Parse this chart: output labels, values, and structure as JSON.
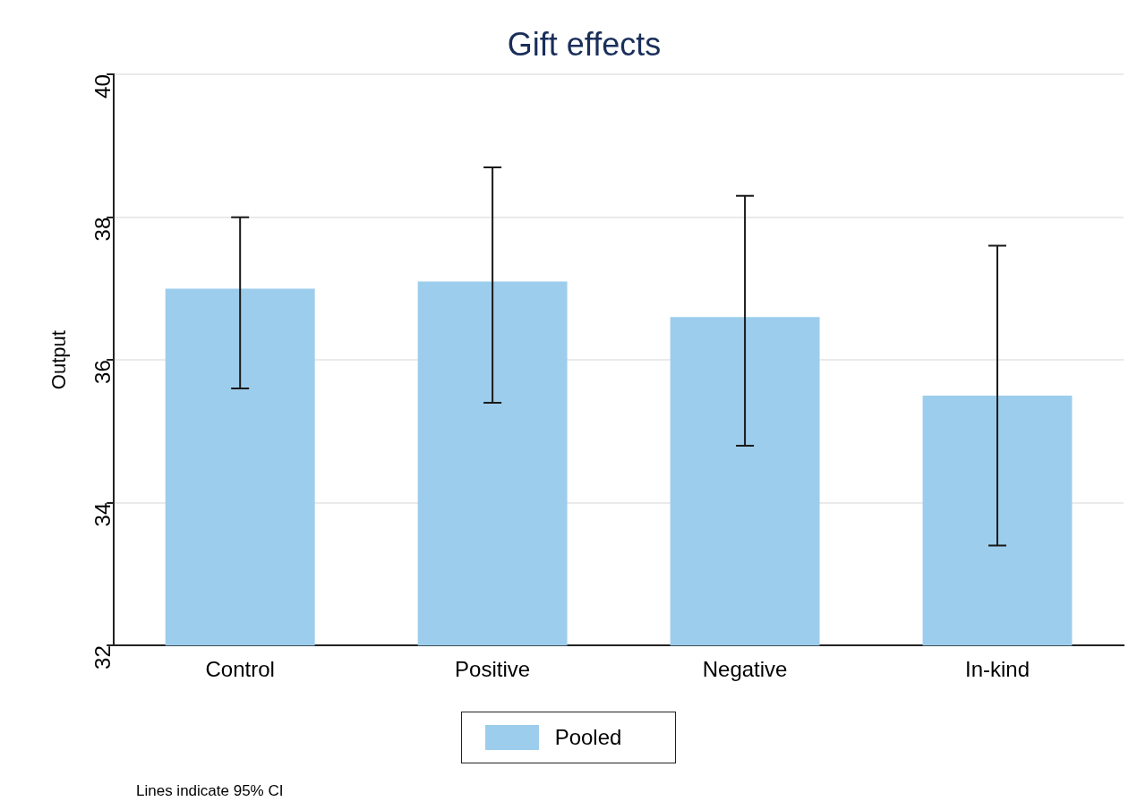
{
  "chart_data": {
    "type": "bar",
    "title": "Gift effects",
    "ylabel": "Output",
    "categories": [
      "Control",
      "Positive",
      "Negative",
      "In-kind"
    ],
    "series": [
      {
        "name": "Pooled",
        "color": "#9dcdec",
        "values": [
          37.0,
          37.1,
          36.6,
          35.5
        ],
        "errors": [
          [
            35.6,
            38.0
          ],
          [
            35.4,
            38.7
          ],
          [
            34.8,
            38.3
          ],
          [
            33.4,
            37.6
          ]
        ]
      }
    ],
    "ylim": [
      32,
      40
    ],
    "yticks": [
      32,
      34,
      36,
      38,
      40
    ],
    "grid": "y",
    "legend": "bottom",
    "annotations": [
      "Lines indicate 95% CI"
    ]
  }
}
